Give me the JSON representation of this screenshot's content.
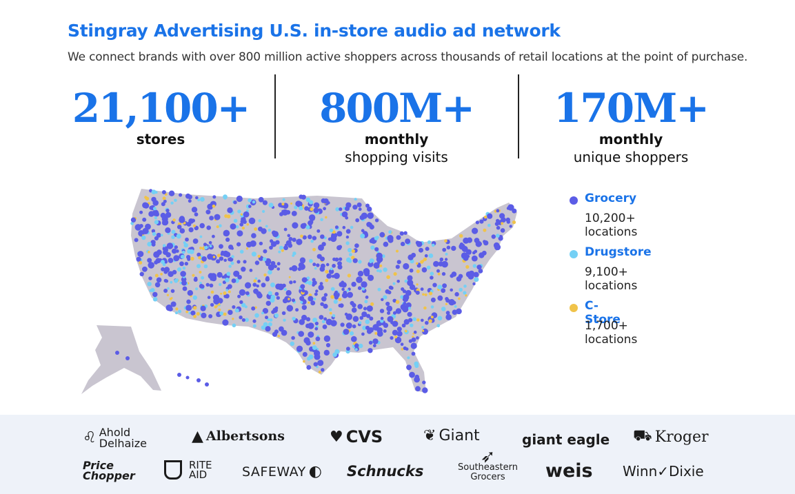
{
  "header": {
    "title": "Stingray Advertising U.S. in-store audio ad network",
    "subtitle": "We connect brands with over 800 million active shoppers across thousands of retail locations at the point of purchase."
  },
  "stats": [
    {
      "value": "21,100+",
      "label_bold": "stores",
      "label": ""
    },
    {
      "value": "800M+",
      "label_bold": "monthly",
      "label": "shopping visits"
    },
    {
      "value": "170M+",
      "label_bold": "monthly",
      "label": "unique shoppers"
    }
  ],
  "legend": [
    {
      "name": "Grocery",
      "count": "10,200+ locations",
      "color": "#5b5ce6"
    },
    {
      "name": "Drugstore",
      "count": "9,100+ locations",
      "color": "#74d0f5"
    },
    {
      "name": "C-Store",
      "count": "1,700+ locations",
      "color": "#f0c34a"
    }
  ],
  "map_colors": {
    "land": "#c9c5d0",
    "grocery": "#5b5ce6",
    "drugstore": "#74d0f5",
    "cstore": "#f0c34a"
  },
  "brands": {
    "ahold_1": "Ahold",
    "ahold_2": "Delhaize",
    "albertsons": "Albertsons",
    "cvs": "CVS",
    "giant": "Giant",
    "giant_eagle": "giant eagle",
    "kroger": "Kroger",
    "price_1": "Price",
    "price_2": "Chopper",
    "rite_1": "RITE",
    "rite_2": "AID",
    "safeway": "SAFEWAY",
    "schnucks": "Schnucks",
    "se_1": "Southeastern",
    "se_2": "Grocers",
    "weis": "weis",
    "winn_dixie": "Winn✓Dixie"
  }
}
